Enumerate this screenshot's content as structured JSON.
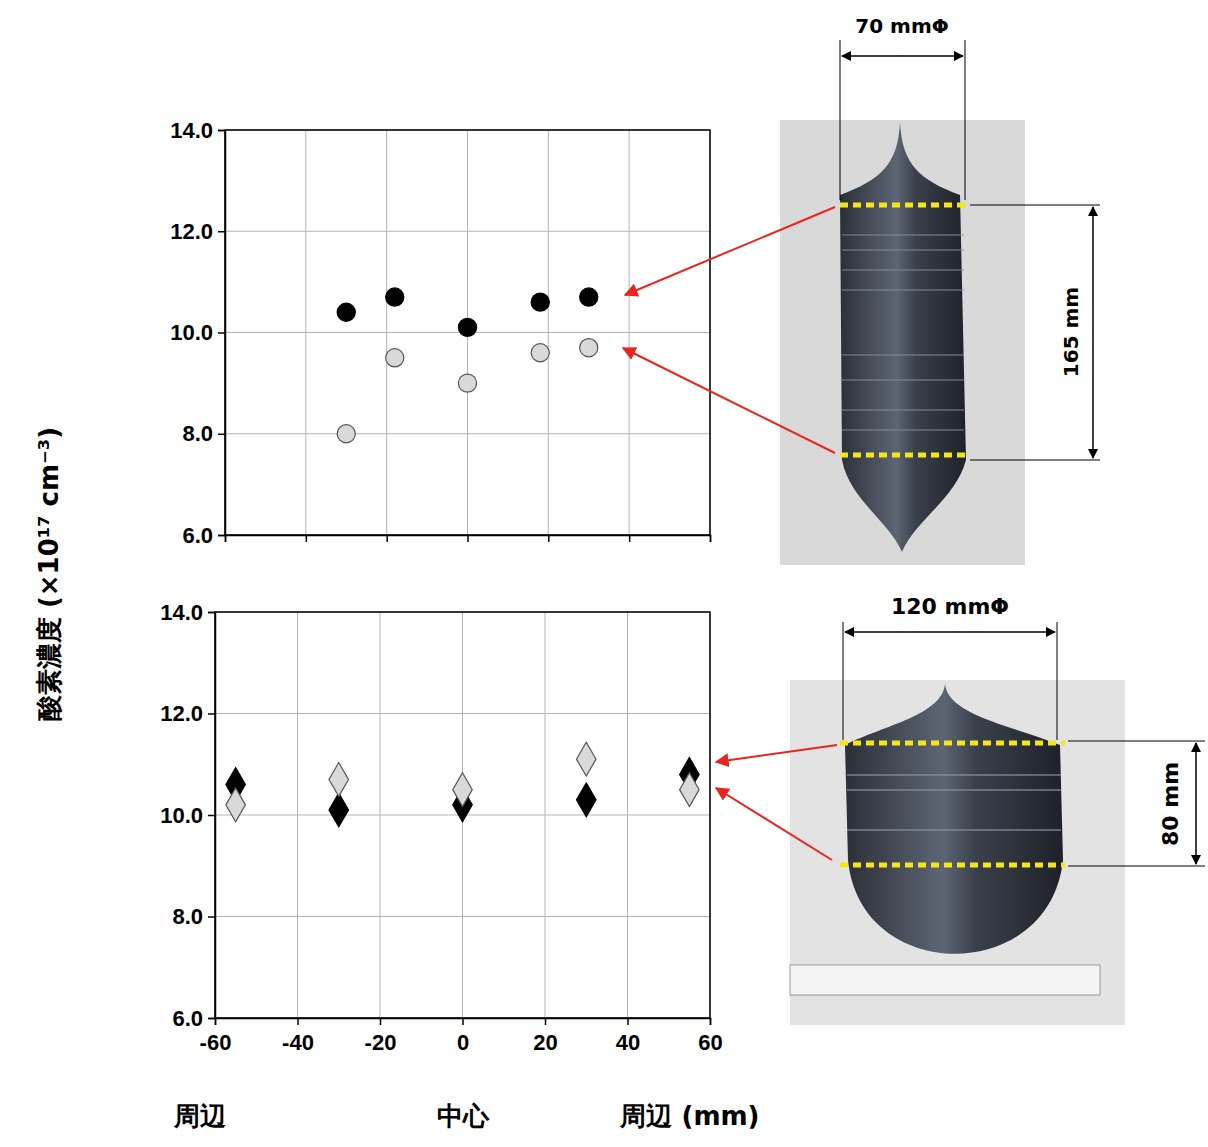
{
  "chart_data": [
    {
      "type": "scatter",
      "xlim": [
        -60,
        60
      ],
      "ylim": [
        6,
        14
      ],
      "xticks": [
        -60,
        -40,
        -20,
        0,
        20,
        40,
        60
      ],
      "yticks": [
        {
          "value": 6,
          "label": "6.0"
        },
        {
          "value": 8,
          "label": "8.0"
        },
        {
          "value": 10,
          "label": "10.0"
        },
        {
          "value": 12,
          "label": "12.0"
        },
        {
          "value": 14,
          "label": "14.0"
        }
      ],
      "tick_labels": "y",
      "grid": true,
      "series": [
        {
          "color": "#000000",
          "marker": "circle",
          "x": [
            -30,
            -18,
            0,
            18,
            30
          ],
          "values": [
            10.4,
            10.7,
            10.1,
            10.6,
            10.7
          ]
        },
        {
          "color": "#d9d9d9",
          "marker": "circle",
          "x": [
            -30,
            -18,
            0,
            18,
            30
          ],
          "values": [
            8.0,
            9.5,
            9.0,
            9.6,
            9.7
          ]
        }
      ]
    },
    {
      "type": "scatter",
      "xlim": [
        -60,
        60
      ],
      "ylim": [
        6,
        14
      ],
      "xticks": [
        -60,
        -40,
        -20,
        0,
        20,
        40,
        60
      ],
      "yticks": [
        {
          "value": 6,
          "label": "6.0"
        },
        {
          "value": 8,
          "label": "8.0"
        },
        {
          "value": 10,
          "label": "10.0"
        },
        {
          "value": 12,
          "label": "12.0"
        },
        {
          "value": 14,
          "label": "14.0"
        }
      ],
      "grid": true,
      "series": [
        {
          "color": "#000000",
          "marker": "diamond",
          "x": [
            -55,
            -30,
            0,
            30,
            55
          ],
          "values": [
            10.6,
            10.1,
            10.2,
            10.3,
            10.8
          ]
        },
        {
          "color": "#d9d9d9",
          "marker": "diamond",
          "x": [
            -55,
            -30,
            0,
            30,
            55
          ],
          "values": [
            10.2,
            10.7,
            10.5,
            11.1,
            10.5
          ]
        }
      ]
    }
  ],
  "figure": {
    "y_label": "酸素濃度 (×10¹⁷ cm⁻³)",
    "x_labels": [
      "周辺",
      "中心",
      "周辺 (mm)"
    ],
    "photos": [
      {
        "width_label": "70 mmΦ",
        "height_label": "165 mm"
      },
      {
        "width_label": "120 mmΦ",
        "height_label": "80 mm"
      }
    ]
  }
}
